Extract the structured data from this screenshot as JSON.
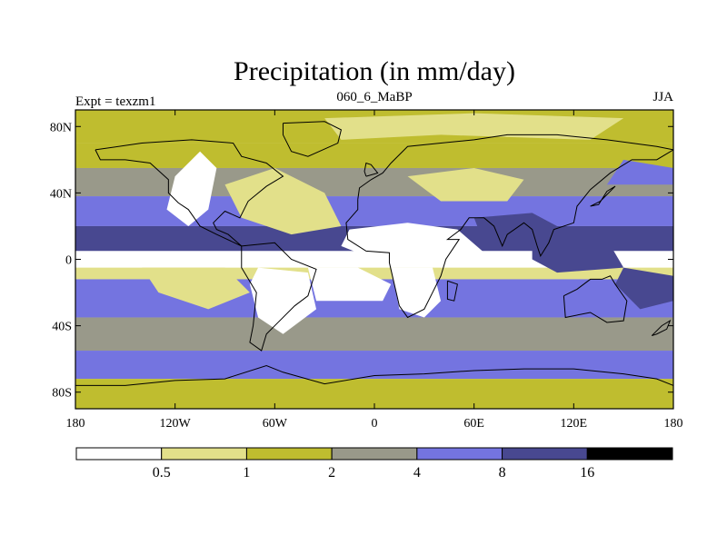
{
  "chart_data": {
    "type": "heatmap",
    "title": "Precipitation (in mm/day)",
    "left_label": "Expt = texzm1",
    "center_label": "060_6_MaBP",
    "right_label": "JJA",
    "x_ticks": [
      {
        "value": -180,
        "label": "180"
      },
      {
        "value": -120,
        "label": "120W"
      },
      {
        "value": -60,
        "label": "60W"
      },
      {
        "value": 0,
        "label": "0"
      },
      {
        "value": 60,
        "label": "60E"
      },
      {
        "value": 120,
        "label": "120E"
      },
      {
        "value": 180,
        "label": "180"
      }
    ],
    "y_ticks": [
      {
        "value": 80,
        "label": "80N"
      },
      {
        "value": 40,
        "label": "40N"
      },
      {
        "value": 0,
        "label": "0"
      },
      {
        "value": -40,
        "label": "40S"
      },
      {
        "value": -80,
        "label": "80S"
      }
    ],
    "xlim": [
      -180,
      180
    ],
    "ylim": [
      -90,
      90
    ],
    "colorbar": {
      "levels": [
        "0.5",
        "1",
        "2",
        "4",
        "8",
        "16"
      ],
      "colors": [
        "#ffffff",
        "#e2e08a",
        "#bfbd2f",
        "#99998a",
        "#7474e0",
        "#484890",
        "#000000"
      ]
    },
    "bands": [
      {
        "lat_min": 70,
        "lat_max": 90,
        "level": 2
      },
      {
        "lat_min": 55,
        "lat_max": 70,
        "level": 2
      },
      {
        "lat_min": 38,
        "lat_max": 55,
        "level": 3
      },
      {
        "lat_min": 20,
        "lat_max": 38,
        "level": 4
      },
      {
        "lat_min": 5,
        "lat_max": 20,
        "level": 5
      },
      {
        "lat_min": -5,
        "lat_max": 5,
        "level": 0
      },
      {
        "lat_min": -12,
        "lat_max": -5,
        "level": 1
      },
      {
        "lat_min": -35,
        "lat_max": -12,
        "level": 4
      },
      {
        "lat_min": -55,
        "lat_max": -35,
        "level": 3
      },
      {
        "lat_min": -72,
        "lat_max": -55,
        "level": 4
      },
      {
        "lat_min": -90,
        "lat_max": -72,
        "level": 2
      }
    ],
    "regions": [
      {
        "name": "north-america-dry",
        "level": 0,
        "points": [
          [
            -120,
            50
          ],
          [
            -105,
            65
          ],
          [
            -95,
            55
          ],
          [
            -100,
            30
          ],
          [
            -112,
            20
          ],
          [
            -125,
            30
          ]
        ]
      },
      {
        "name": "north-atlantic-dry",
        "level": 1,
        "points": [
          [
            -90,
            45
          ],
          [
            -60,
            55
          ],
          [
            -30,
            40
          ],
          [
            -20,
            20
          ],
          [
            -50,
            15
          ],
          [
            -80,
            25
          ]
        ]
      },
      {
        "name": "sahara-dry",
        "level": 0,
        "points": [
          [
            -15,
            18
          ],
          [
            20,
            22
          ],
          [
            50,
            18
          ],
          [
            65,
            5
          ],
          [
            40,
            -5
          ],
          [
            0,
            0
          ],
          [
            -20,
            8
          ]
        ]
      },
      {
        "name": "central-asia-dry",
        "level": 1,
        "points": [
          [
            20,
            50
          ],
          [
            60,
            55
          ],
          [
            90,
            48
          ],
          [
            80,
            35
          ],
          [
            40,
            35
          ]
        ]
      },
      {
        "name": "arctic-eurasia",
        "level": 1,
        "points": [
          [
            -30,
            85
          ],
          [
            60,
            88
          ],
          [
            150,
            85
          ],
          [
            130,
            72
          ],
          [
            40,
            75
          ],
          [
            -20,
            72
          ]
        ]
      },
      {
        "name": "south-america-dry",
        "level": 0,
        "points": [
          [
            -70,
            -5
          ],
          [
            -40,
            -8
          ],
          [
            -35,
            -30
          ],
          [
            -55,
            -45
          ],
          [
            -70,
            -35
          ],
          [
            -75,
            -15
          ]
        ]
      },
      {
        "name": "south-atlantic-dry",
        "level": 0,
        "points": [
          [
            -40,
            -5
          ],
          [
            -10,
            -5
          ],
          [
            10,
            -15
          ],
          [
            5,
            -25
          ],
          [
            -35,
            -25
          ]
        ]
      },
      {
        "name": "southern-africa-dry",
        "level": 0,
        "points": [
          [
            10,
            -5
          ],
          [
            35,
            -5
          ],
          [
            40,
            -25
          ],
          [
            30,
            -35
          ],
          [
            15,
            -30
          ]
        ]
      },
      {
        "name": "east-pacific-dry",
        "level": 1,
        "points": [
          [
            -140,
            -5
          ],
          [
            -90,
            -5
          ],
          [
            -75,
            -20
          ],
          [
            -100,
            -30
          ],
          [
            -130,
            -20
          ]
        ]
      },
      {
        "name": "south-pacific-convergence",
        "level": 5,
        "points": [
          [
            150,
            -5
          ],
          [
            180,
            -10
          ],
          [
            180,
            -25
          ],
          [
            160,
            -30
          ],
          [
            145,
            -15
          ]
        ]
      },
      {
        "name": "maritime-continent",
        "level": 5,
        "points": [
          [
            95,
            10
          ],
          [
            140,
            12
          ],
          [
            150,
            -5
          ],
          [
            110,
            -8
          ],
          [
            95,
            0
          ]
        ]
      },
      {
        "name": "north-pacific-storm",
        "level": 4,
        "points": [
          [
            140,
            45
          ],
          [
            180,
            45
          ],
          [
            180,
            55
          ],
          [
            150,
            60
          ]
        ]
      },
      {
        "name": "south-asia-monsoon",
        "level": 5,
        "points": [
          [
            60,
            25
          ],
          [
            95,
            28
          ],
          [
            110,
            20
          ],
          [
            90,
            10
          ],
          [
            65,
            12
          ]
        ]
      }
    ],
    "coastlines": [
      {
        "name": "north-america",
        "points": [
          [
            -168,
            66
          ],
          [
            -140,
            70
          ],
          [
            -110,
            72
          ],
          [
            -85,
            70
          ],
          [
            -80,
            62
          ],
          [
            -65,
            58
          ],
          [
            -55,
            50
          ],
          [
            -65,
            44
          ],
          [
            -76,
            35
          ],
          [
            -81,
            25
          ],
          [
            -90,
            29
          ],
          [
            -97,
            22
          ],
          [
            -95,
            18
          ],
          [
            -88,
            15
          ],
          [
            -80,
            8
          ],
          [
            -95,
            15
          ],
          [
            -105,
            20
          ],
          [
            -112,
            30
          ],
          [
            -118,
            34
          ],
          [
            -124,
            40
          ],
          [
            -124,
            48
          ],
          [
            -135,
            58
          ],
          [
            -150,
            60
          ],
          [
            -165,
            60
          ],
          [
            -168,
            66
          ]
        ]
      },
      {
        "name": "greenland",
        "points": [
          [
            -55,
            82
          ],
          [
            -30,
            83
          ],
          [
            -20,
            78
          ],
          [
            -22,
            70
          ],
          [
            -40,
            62
          ],
          [
            -50,
            65
          ],
          [
            -55,
            75
          ],
          [
            -55,
            82
          ]
        ]
      },
      {
        "name": "south-america",
        "points": [
          [
            -80,
            8
          ],
          [
            -60,
            10
          ],
          [
            -50,
            0
          ],
          [
            -35,
            -6
          ],
          [
            -40,
            -22
          ],
          [
            -48,
            -28
          ],
          [
            -58,
            -38
          ],
          [
            -65,
            -45
          ],
          [
            -68,
            -55
          ],
          [
            -75,
            -50
          ],
          [
            -73,
            -40
          ],
          [
            -71,
            -20
          ],
          [
            -80,
            -5
          ],
          [
            -80,
            8
          ]
        ]
      },
      {
        "name": "eurasia-africa",
        "points": [
          [
            -10,
            36
          ],
          [
            -9,
            43
          ],
          [
            -2,
            48
          ],
          [
            5,
            52
          ],
          [
            10,
            58
          ],
          [
            20,
            68
          ],
          [
            40,
            70
          ],
          [
            60,
            72
          ],
          [
            80,
            75
          ],
          [
            110,
            75
          ],
          [
            140,
            72
          ],
          [
            170,
            68
          ],
          [
            180,
            66
          ],
          [
            170,
            60
          ],
          [
            155,
            60
          ],
          [
            142,
            52
          ],
          [
            130,
            42
          ],
          [
            122,
            32
          ],
          [
            120,
            22
          ],
          [
            108,
            18
          ],
          [
            105,
            10
          ],
          [
            100,
            2
          ],
          [
            98,
            8
          ],
          [
            95,
            18
          ],
          [
            90,
            22
          ],
          [
            80,
            15
          ],
          [
            77,
            8
          ],
          [
            72,
            20
          ],
          [
            66,
            25
          ],
          [
            57,
            25
          ],
          [
            52,
            18
          ],
          [
            44,
            12
          ],
          [
            51,
            12
          ],
          [
            43,
            0
          ],
          [
            40,
            -10
          ],
          [
            35,
            -20
          ],
          [
            30,
            -30
          ],
          [
            20,
            -35
          ],
          [
            15,
            -28
          ],
          [
            12,
            -15
          ],
          [
            9,
            -2
          ],
          [
            9,
            4
          ],
          [
            -5,
            5
          ],
          [
            -16,
            12
          ],
          [
            -17,
            22
          ],
          [
            -10,
            30
          ],
          [
            -10,
            36
          ]
        ]
      },
      {
        "name": "australia",
        "points": [
          [
            114,
            -22
          ],
          [
            122,
            -18
          ],
          [
            130,
            -12
          ],
          [
            137,
            -12
          ],
          [
            142,
            -10
          ],
          [
            145,
            -15
          ],
          [
            152,
            -25
          ],
          [
            150,
            -37
          ],
          [
            140,
            -38
          ],
          [
            130,
            -32
          ],
          [
            115,
            -35
          ],
          [
            114,
            -22
          ]
        ]
      },
      {
        "name": "antarctica-coast",
        "points": [
          [
            -180,
            -76
          ],
          [
            -150,
            -76
          ],
          [
            -120,
            -73
          ],
          [
            -90,
            -72
          ],
          [
            -65,
            -64
          ],
          [
            -55,
            -68
          ],
          [
            -30,
            -75
          ],
          [
            0,
            -70
          ],
          [
            30,
            -69
          ],
          [
            60,
            -67
          ],
          [
            90,
            -66
          ],
          [
            120,
            -66
          ],
          [
            150,
            -69
          ],
          [
            170,
            -72
          ],
          [
            180,
            -76
          ]
        ]
      },
      {
        "name": "madagascar",
        "points": [
          [
            44,
            -13
          ],
          [
            50,
            -15
          ],
          [
            48,
            -25
          ],
          [
            44,
            -24
          ],
          [
            44,
            -13
          ]
        ]
      },
      {
        "name": "japan",
        "points": [
          [
            130,
            32
          ],
          [
            136,
            35
          ],
          [
            141,
            40
          ],
          [
            145,
            44
          ],
          [
            140,
            41
          ],
          [
            135,
            33
          ],
          [
            130,
            32
          ]
        ]
      },
      {
        "name": "britain",
        "points": [
          [
            -5,
            50
          ],
          [
            2,
            52
          ],
          [
            -2,
            57
          ],
          [
            -5,
            58
          ],
          [
            -6,
            53
          ],
          [
            -5,
            50
          ]
        ]
      },
      {
        "name": "new-zealand",
        "points": [
          [
            167,
            -46
          ],
          [
            173,
            -40
          ],
          [
            178,
            -37
          ],
          [
            176,
            -42
          ],
          [
            170,
            -45
          ],
          [
            167,
            -46
          ]
        ]
      }
    ]
  }
}
